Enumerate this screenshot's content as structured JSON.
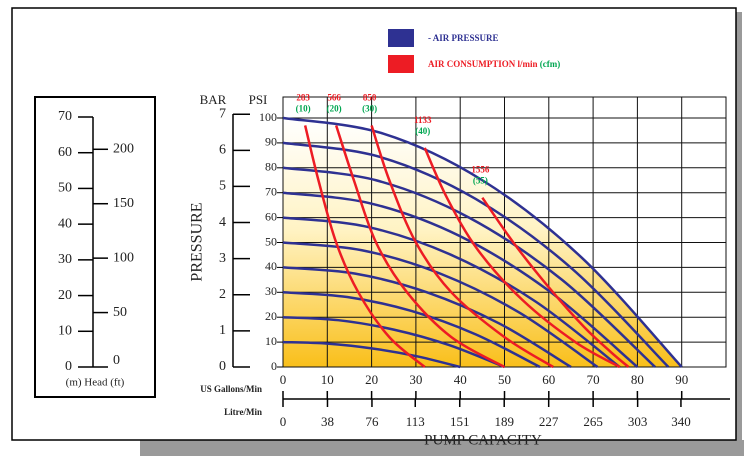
{
  "chart_data": {
    "type": "line",
    "series": [
      {
        "name": "- AIR PRESSURE",
        "color": "#2e3192",
        "lines": [
          {
            "x": [
              0,
              22.5,
              45,
              67.5,
              90
            ],
            "values": [
              100,
              93.8,
              75,
              43.8,
              0
            ]
          },
          {
            "x": [
              0,
              21.8,
              43.5,
              65.3,
              87
            ],
            "values": [
              90,
              84.4,
              67.5,
              39.4,
              0
            ]
          },
          {
            "x": [
              0,
              21,
              42,
              63,
              84
            ],
            "values": [
              80,
              75,
              60,
              35,
              0
            ]
          },
          {
            "x": [
              0,
              20,
              40,
              60,
              80
            ],
            "values": [
              70,
              65.6,
              52.5,
              30.6,
              0
            ]
          },
          {
            "x": [
              0,
              19,
              38,
              57,
              76
            ],
            "values": [
              60,
              56.3,
              45,
              26.3,
              0
            ]
          },
          {
            "x": [
              0,
              17.8,
              35.5,
              53.3,
              71
            ],
            "values": [
              50,
              46.9,
              37.5,
              21.9,
              0
            ]
          },
          {
            "x": [
              0,
              16.3,
              32.5,
              48.8,
              65
            ],
            "values": [
              40,
              37.5,
              30,
              17.5,
              0
            ]
          },
          {
            "x": [
              0,
              14.5,
              29,
              43.5,
              58
            ],
            "values": [
              30,
              28.1,
              22.5,
              13.1,
              0
            ]
          },
          {
            "x": [
              0,
              12.5,
              25,
              37.5,
              50
            ],
            "values": [
              20,
              18.8,
              15,
              8.8,
              0
            ]
          },
          {
            "x": [
              0,
              10,
              20,
              30,
              40
            ],
            "values": [
              10,
              9.4,
              7.5,
              4.4,
              0
            ]
          }
        ]
      },
      {
        "name": "AIR CONSUMPTION l/min",
        "name_suffix": "(cfm)",
        "color": "#ed1c24",
        "label_color": "#00a651",
        "lines": [
          {
            "label": "283",
            "cfm": "(10)",
            "x": [
              5,
              8,
              12,
              17,
              24,
              32
            ],
            "values": [
              97,
              75,
              50,
              30,
              12,
              0
            ]
          },
          {
            "label": "566",
            "cfm": "(20)",
            "x": [
              12,
              16,
              21,
              28,
              38,
              50
            ],
            "values": [
              97,
              75,
              50,
              30,
              12,
              0
            ]
          },
          {
            "label": "850",
            "cfm": "(30)",
            "x": [
              20,
              24,
              30,
              38,
              50,
              61
            ],
            "values": [
              97,
              75,
              50,
              30,
              12,
              0
            ]
          },
          {
            "label": "1133",
            "cfm": "(40)",
            "x": [
              32,
              37,
              44,
              54,
              66,
              76
            ],
            "values": [
              88,
              68,
              47,
              27,
              10,
              0
            ]
          },
          {
            "label": "1556",
            "cfm": "(55)",
            "x": [
              45,
              52,
              60,
              68,
              74,
              78
            ],
            "values": [
              68,
              50,
              32,
              16,
              6,
              0
            ]
          }
        ]
      }
    ],
    "xlim": [
      0,
      100
    ],
    "xticks": [
      0,
      10,
      20,
      30,
      40,
      50,
      60,
      70,
      80,
      90
    ],
    "x_label": "US Gallons/Min",
    "x2lim": [
      0,
      378.5
    ],
    "x2ticks": [
      0,
      38,
      76,
      113,
      151,
      189,
      227,
      265,
      303,
      340
    ],
    "x2_label": "Litre/Min",
    "xtitle": "PUMP CAPACITY",
    "ylim": [
      0,
      100
    ],
    "yticks": [
      0,
      10,
      20,
      30,
      40,
      50,
      60,
      70,
      80,
      90,
      100
    ],
    "y_unit": "PSI",
    "y2lim": [
      0,
      6.895
    ],
    "y2ticks": [
      0,
      1,
      2,
      3,
      4,
      5,
      6,
      7
    ],
    "y2_unit": "BAR",
    "ytitle": "PRESSURE",
    "grid": true,
    "head": {
      "mlim": [
        0,
        70
      ],
      "mticks": [
        0,
        10,
        20,
        30,
        40,
        50,
        60,
        70
      ],
      "ftlim": [
        0,
        229.66
      ],
      "ftticks": [
        0,
        50,
        100,
        150,
        200
      ],
      "label": "(m) Head (ft)"
    }
  }
}
